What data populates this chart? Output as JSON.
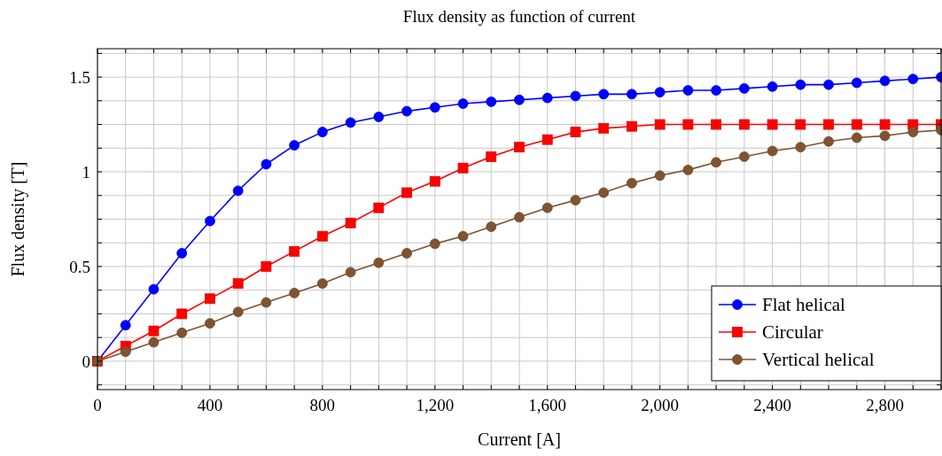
{
  "chart_data": {
    "type": "line",
    "title": "Flux density as function of current",
    "xlabel": "Current [A]",
    "ylabel": "Flux density [T]",
    "x": [
      0,
      100,
      200,
      300,
      400,
      500,
      600,
      700,
      800,
      900,
      1000,
      1100,
      1200,
      1300,
      1400,
      1500,
      1600,
      1700,
      1800,
      1900,
      2000,
      2100,
      2200,
      2300,
      2400,
      2500,
      2600,
      2700,
      2800,
      2900,
      3000
    ],
    "series": [
      {
        "name": "Flat helical",
        "color": "#0000ff",
        "marker": "circle",
        "values": [
          0,
          0.19,
          0.38,
          0.57,
          0.74,
          0.9,
          1.04,
          1.14,
          1.21,
          1.26,
          1.29,
          1.32,
          1.34,
          1.36,
          1.37,
          1.38,
          1.39,
          1.4,
          1.41,
          1.41,
          1.42,
          1.43,
          1.43,
          1.44,
          1.45,
          1.46,
          1.46,
          1.47,
          1.48,
          1.49,
          1.5
        ]
      },
      {
        "name": "Circular",
        "color": "#ff0000",
        "marker": "square",
        "values": [
          0,
          0.08,
          0.16,
          0.25,
          0.33,
          0.41,
          0.5,
          0.58,
          0.66,
          0.73,
          0.81,
          0.89,
          0.95,
          1.02,
          1.08,
          1.13,
          1.17,
          1.21,
          1.23,
          1.24,
          1.25,
          1.25,
          1.25,
          1.25,
          1.25,
          1.25,
          1.25,
          1.25,
          1.25,
          1.25,
          1.25
        ]
      },
      {
        "name": "Vertical helical",
        "color": "#7f5430",
        "marker": "circle",
        "values": [
          0,
          0.05,
          0.1,
          0.15,
          0.2,
          0.26,
          0.31,
          0.36,
          0.41,
          0.47,
          0.52,
          0.57,
          0.62,
          0.66,
          0.71,
          0.76,
          0.81,
          0.85,
          0.89,
          0.94,
          0.98,
          1.01,
          1.05,
          1.08,
          1.11,
          1.13,
          1.16,
          1.18,
          1.19,
          1.21,
          1.22
        ]
      }
    ],
    "xlim": [
      0,
      3000
    ],
    "xticks": [
      0,
      {
        "value": 100,
        "label": null
      },
      {
        "value": 200,
        "label": null
      },
      {
        "value": 300,
        "label": null
      },
      400,
      {
        "value": 500,
        "label": null
      },
      {
        "value": 600,
        "label": null
      },
      {
        "value": 700,
        "label": null
      },
      800,
      {
        "value": 900,
        "label": null
      },
      {
        "value": 1000,
        "label": null
      },
      {
        "value": 1100,
        "label": null
      },
      {
        "value": 1200,
        "label": "1,200"
      },
      {
        "value": 1300,
        "label": null
      },
      {
        "value": 1400,
        "label": null
      },
      {
        "value": 1500,
        "label": null
      },
      {
        "value": 1600,
        "label": "1,600"
      },
      {
        "value": 1700,
        "label": null
      },
      {
        "value": 1800,
        "label": null
      },
      {
        "value": 1900,
        "label": null
      },
      {
        "value": 2000,
        "label": "2,000"
      },
      {
        "value": 2100,
        "label": null
      },
      {
        "value": 2200,
        "label": null
      },
      {
        "value": 2300,
        "label": null
      },
      {
        "value": 2400,
        "label": "2,400"
      },
      {
        "value": 2500,
        "label": null
      },
      {
        "value": 2600,
        "label": null
      },
      {
        "value": 2700,
        "label": null
      },
      {
        "value": 2800,
        "label": "2,800"
      },
      {
        "value": 2900,
        "label": null
      },
      {
        "value": 3000,
        "label": null
      }
    ],
    "ylim": [
      -0.15,
      1.65
    ],
    "yticks": [
      {
        "value": -0.125,
        "label": null
      },
      0,
      {
        "value": 0.125,
        "label": null
      },
      {
        "value": 0.25,
        "label": null
      },
      {
        "value": 0.375,
        "label": null
      },
      0.5,
      {
        "value": 0.625,
        "label": null
      },
      {
        "value": 0.75,
        "label": null
      },
      {
        "value": 0.875,
        "label": null
      },
      1,
      {
        "value": 1.125,
        "label": null
      },
      {
        "value": 1.25,
        "label": null
      },
      {
        "value": 1.375,
        "label": null
      },
      1.5,
      {
        "value": 1.625,
        "label": null
      }
    ],
    "grid": true,
    "legend": "bottom right",
    "line_style": "solid"
  }
}
